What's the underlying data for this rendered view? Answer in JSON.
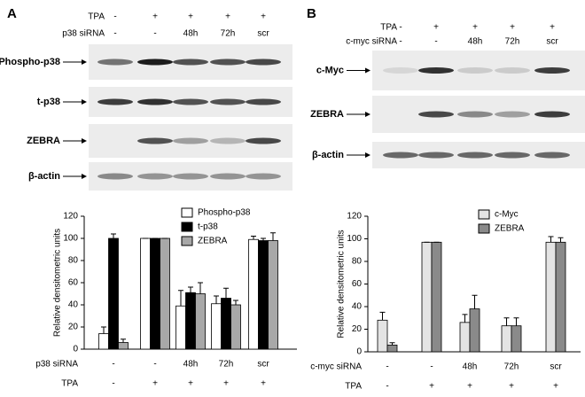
{
  "panels": [
    {
      "label": "A",
      "conditions": [
        {
          "label": "TPA",
          "values": [
            "-",
            "+",
            "+",
            "+",
            "+"
          ]
        },
        {
          "label": "p38 siRNA",
          "values": [
            "-",
            "-",
            "48h",
            "72h",
            "scr"
          ]
        }
      ],
      "blots": [
        "Phospho-p38",
        "t-p38",
        "ZEBRA",
        "β-actin"
      ]
    },
    {
      "label": "B",
      "conditions": [
        {
          "label": "TPA",
          "values": [
            "-",
            "+",
            "+",
            "+",
            "+"
          ]
        },
        {
          "label": "c-myc siRNA",
          "values": [
            "-",
            "-",
            "48h",
            "72h",
            "scr"
          ]
        }
      ],
      "blots": [
        "c-Myc",
        "ZEBRA",
        "β-actin"
      ]
    }
  ],
  "chart_data": [
    {
      "type": "bar",
      "y_label": "Relative densitometric units",
      "categories": [
        null,
        null,
        null,
        null,
        null
      ],
      "condition_rows": [
        {
          "label": "p38 siRNA",
          "values": [
            "-",
            "-",
            "48h",
            "72h",
            "scr"
          ]
        },
        {
          "label": "TPA",
          "values": [
            "-",
            "+",
            "+",
            "+",
            "+"
          ]
        }
      ],
      "series": [
        {
          "name": "Phospho-p38",
          "color": "#ffffff",
          "values": [
            14,
            100,
            39,
            41,
            99
          ],
          "errors": [
            6,
            0,
            14,
            7,
            3
          ]
        },
        {
          "name": "t-p38",
          "color": "#000000",
          "values": [
            100,
            100,
            51,
            46,
            98
          ],
          "errors": [
            4,
            0,
            5,
            9,
            2
          ]
        },
        {
          "name": "ZEBRA",
          "color": "#a8a8a8",
          "values": [
            6,
            100,
            50,
            40,
            98
          ],
          "errors": [
            3,
            0,
            10,
            4,
            7
          ]
        }
      ],
      "ylim": [
        0,
        120
      ],
      "yticks": [
        0,
        20,
        40,
        60,
        80,
        100,
        120
      ]
    },
    {
      "type": "bar",
      "y_label": "Relative densitometric units",
      "categories": [
        null,
        null,
        null,
        null,
        null
      ],
      "condition_rows": [
        {
          "label": "c-myc siRNA",
          "values": [
            "-",
            "-",
            "48h",
            "72h",
            "scr"
          ]
        },
        {
          "label": "TPA",
          "values": [
            "-",
            "+",
            "+",
            "+",
            "+"
          ]
        }
      ],
      "series": [
        {
          "name": "c-Myc",
          "color": "#e4e4e4",
          "values": [
            28,
            97,
            26,
            23,
            97
          ],
          "errors": [
            7,
            0,
            7,
            7,
            5
          ]
        },
        {
          "name": "ZEBRA",
          "color": "#8a8a8a",
          "values": [
            6,
            97,
            38,
            23,
            97
          ],
          "errors": [
            2,
            0,
            12,
            7,
            4
          ]
        }
      ],
      "ylim": [
        0,
        120
      ],
      "yticks": [
        0,
        20,
        40,
        60,
        80,
        100,
        120
      ]
    }
  ]
}
